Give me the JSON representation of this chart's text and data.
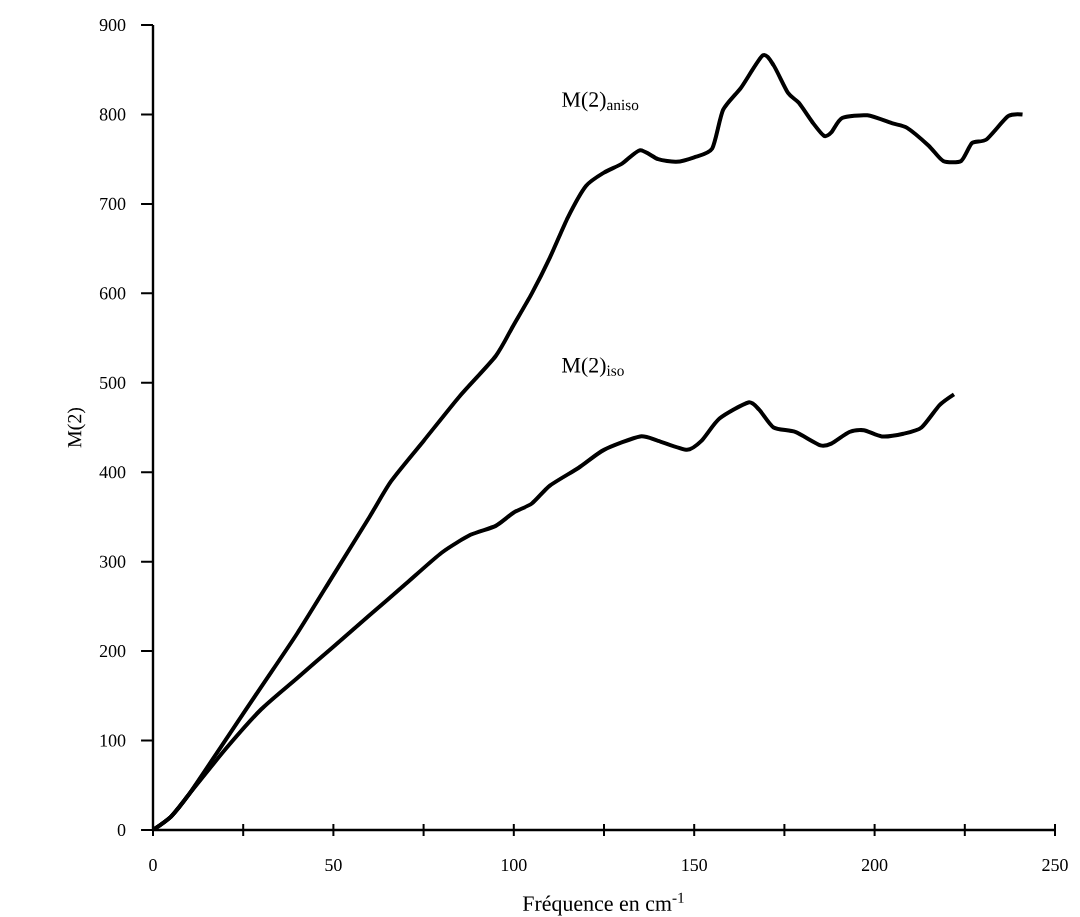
{
  "chart_data": {
    "type": "line",
    "xlabel": "Fréquence en cm$^{-1}$",
    "ylabel": "M(2)",
    "xlim": [
      0,
      250
    ],
    "ylim": [
      0,
      900
    ],
    "xticks": [
      0,
      {
        "value": 25,
        "label": null
      },
      50,
      {
        "value": 75,
        "label": null
      },
      100,
      {
        "value": 125,
        "label": null
      },
      150,
      {
        "value": 175,
        "label": null
      },
      200,
      {
        "value": 225,
        "label": null
      },
      250
    ],
    "yticks": [
      0,
      100,
      200,
      300,
      400,
      500,
      600,
      700,
      800,
      900
    ],
    "grid": false,
    "legend": false,
    "marker": "none",
    "line_style": "solid",
    "series": [
      {
        "name": "M(2)$_{aniso}$",
        "color": "#000000",
        "x": [
          0,
          5,
          10,
          20,
          30,
          40,
          50,
          60,
          66,
          75,
          85,
          95,
          100,
          105,
          110,
          115,
          120,
          125,
          130,
          135,
          140,
          145,
          150,
          155,
          158,
          163,
          169,
          172,
          176,
          179,
          183,
          186,
          188,
          191,
          198,
          205,
          209,
          215,
          219,
          224,
          227,
          231,
          237,
          241
        ],
        "values": [
          0,
          15,
          40,
          100,
          160,
          220,
          285,
          350,
          390,
          435,
          485,
          530,
          565,
          600,
          640,
          685,
          720,
          735,
          745,
          760,
          750,
          747,
          752,
          762,
          805,
          830,
          866,
          855,
          824,
          813,
          790,
          776,
          780,
          796,
          799,
          790,
          785,
          765,
          748,
          748,
          768,
          772,
          798,
          800
        ]
      },
      {
        "name": "M(2)$_{iso}$",
        "color": "#000000",
        "x": [
          0,
          5,
          10,
          20,
          30,
          40,
          50,
          60,
          70,
          80,
          88,
          95,
          100,
          105,
          110,
          118,
          125,
          135,
          140,
          148,
          152,
          157,
          165,
          168,
          172,
          178,
          185,
          188,
          193,
          197,
          202,
          208,
          213,
          218,
          222
        ],
        "values": [
          0,
          15,
          40,
          90,
          135,
          170,
          205,
          240,
          275,
          310,
          330,
          340,
          355,
          365,
          385,
          405,
          425,
          440,
          435,
          425,
          435,
          460,
          478,
          470,
          450,
          445,
          430,
          432,
          445,
          447,
          440,
          443,
          450,
          475,
          487
        ]
      }
    ]
  }
}
